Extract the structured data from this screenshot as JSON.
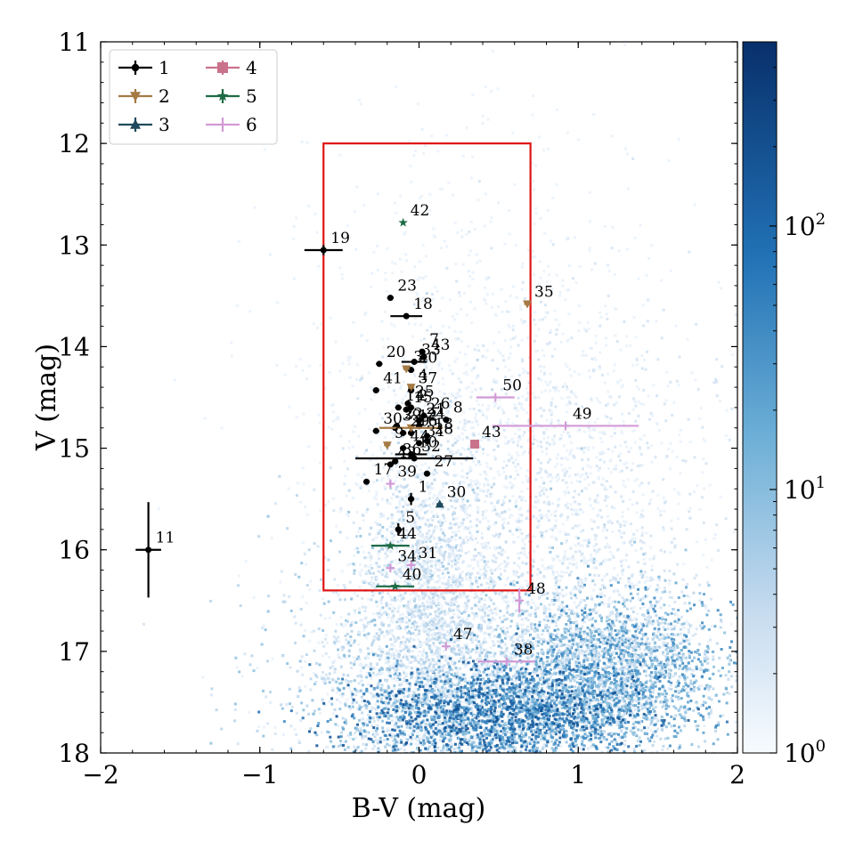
{
  "chart_data": {
    "type": "scatter",
    "xlabel": "B-V (mag)",
    "ylabel": "V (mag)",
    "xlim": [
      -2,
      2
    ],
    "ylim": [
      18,
      11
    ],
    "y_inverted": true,
    "x_ticks": [
      "−2",
      "−1",
      "0",
      "1",
      "2"
    ],
    "x_tick_values": [
      -2,
      -1,
      0,
      1,
      2
    ],
    "y_ticks": [
      "11",
      "12",
      "13",
      "14",
      "15",
      "16",
      "17",
      "18"
    ],
    "y_tick_values": [
      11,
      12,
      13,
      14,
      15,
      16,
      17,
      18
    ],
    "grid": false,
    "legend": {
      "placement": "top-left",
      "entries": [
        {
          "label": "1",
          "marker": "circle",
          "color": "#000000"
        },
        {
          "label": "2",
          "marker": "triangle-down",
          "color": "#a57a45"
        },
        {
          "label": "3",
          "marker": "triangle-up",
          "color": "#1f4a5e"
        },
        {
          "label": "4",
          "marker": "square",
          "color": "#c9728b"
        },
        {
          "label": "5",
          "marker": "star",
          "color": "#1e6b45"
        },
        {
          "label": "6",
          "marker": "plus",
          "color": "#d29ad6"
        }
      ]
    },
    "colorbar": {
      "scale": "log",
      "range": [
        1,
        500
      ],
      "colormap": "Blues",
      "ticks": [
        {
          "value": 1,
          "base": "10",
          "exp": "0"
        },
        {
          "value": 10,
          "base": "10",
          "exp": "1"
        },
        {
          "value": 100,
          "base": "10",
          "exp": "2"
        }
      ]
    },
    "selection_box": {
      "x": [
        -0.6,
        0.7
      ],
      "y": [
        12,
        16.4
      ],
      "color": "#e01414"
    },
    "background_density": "2D histogram of field stars: main sequence near B-V 0, red giant clump near B-V 1.2",
    "series": [
      {
        "name": "1",
        "marker": "circle",
        "color": "#000000",
        "points": [
          {
            "id": "1",
            "x": -0.05,
            "y": 15.5,
            "xerr": 0.02,
            "yerr": 0.06
          },
          {
            "id": "2",
            "x": -0.05,
            "y": 14.6,
            "xerr": 0.02,
            "yerr": 0.02
          },
          {
            "id": "5",
            "x": -0.13,
            "y": 15.8,
            "xerr": 0.02,
            "yerr": 0.06
          },
          {
            "id": "7",
            "x": 0.02,
            "y": 14.05,
            "xerr": 0.02,
            "yerr": 0.02
          },
          {
            "id": "8",
            "x": 0.17,
            "y": 14.72,
            "xerr": 0.02,
            "yerr": 0.02
          },
          {
            "id": "10",
            "x": -0.05,
            "y": 15.06,
            "xerr": 0.1,
            "yerr": 0.02
          },
          {
            "id": "11",
            "x": -1.7,
            "y": 16.0,
            "xerr": 0.08,
            "yerr": 0.47
          },
          {
            "id": "13",
            "x": 0.05,
            "y": 14.88,
            "xerr": 0.02,
            "yerr": 0.02
          },
          {
            "id": "14",
            "x": -0.13,
            "y": 14.6,
            "xerr": 0.02,
            "yerr": 0.02
          },
          {
            "id": "15",
            "x": -0.08,
            "y": 14.62,
            "xerr": 0.02,
            "yerr": 0.02
          },
          {
            "id": "16",
            "x": -0.05,
            "y": 14.85,
            "xerr": 0.02,
            "yerr": 0.02
          },
          {
            "id": "17",
            "x": -0.33,
            "y": 15.33,
            "xerr": 0.02,
            "yerr": 0.02
          },
          {
            "id": "18",
            "x": -0.08,
            "y": 13.7,
            "xerr": 0.1,
            "yerr": 0.02
          },
          {
            "id": "19",
            "x": -0.6,
            "y": 13.05,
            "xerr": 0.12,
            "yerr": 0.05
          },
          {
            "id": "20",
            "x": -0.25,
            "y": 14.17,
            "xerr": 0.02,
            "yerr": 0.02
          },
          {
            "id": "21",
            "x": 0.0,
            "y": 14.73,
            "xerr": 0.02,
            "yerr": 0.02
          },
          {
            "id": "22",
            "x": -0.14,
            "y": 14.78,
            "xerr": 0.02,
            "yerr": 0.02
          },
          {
            "id": "23",
            "x": -0.18,
            "y": 13.52,
            "xerr": 0.02,
            "yerr": 0.02
          },
          {
            "id": "24",
            "x": 0.0,
            "y": 14.78,
            "xerr": 0.02,
            "yerr": 0.02
          },
          {
            "id": "25",
            "x": -0.07,
            "y": 14.56,
            "xerr": 0.02,
            "yerr": 0.02
          },
          {
            "id": "26",
            "x": 0.03,
            "y": 14.68,
            "xerr": 0.02,
            "yerr": 0.02
          },
          {
            "id": "27",
            "x": 0.05,
            "y": 15.25,
            "xerr": 0.02,
            "yerr": 0.02
          },
          {
            "id": "28",
            "x": 0.05,
            "y": 14.93,
            "xerr": 0.02,
            "yerr": 0.02
          },
          {
            "id": "29",
            "x": -0.1,
            "y": 14.85,
            "xerr": 0.02,
            "yerr": 0.02
          },
          {
            "id": "30",
            "x": -0.27,
            "y": 14.83,
            "xerr": 0.02,
            "yerr": 0.02
          },
          {
            "id": "31",
            "x": 0.0,
            "y": 14.95,
            "xerr": 0.02,
            "yerr": 0.02
          },
          {
            "id": "32",
            "x": -0.03,
            "y": 15.1,
            "xerr": 0.37,
            "yerr": 0.02
          },
          {
            "id": "33",
            "x": -0.03,
            "y": 14.15,
            "xerr": 0.08,
            "yerr": 0.02
          },
          {
            "id": "36",
            "x": -0.15,
            "y": 15.13,
            "xerr": 0.02,
            "yerr": 0.02
          },
          {
            "id": "37",
            "x": -0.05,
            "y": 14.43,
            "xerr": 0.02,
            "yerr": 0.02
          },
          {
            "id": "39",
            "x": -0.15,
            "y": 14.8,
            "xerr": 0.02,
            "yerr": 0.02
          },
          {
            "id": "40",
            "x": -0.05,
            "y": 14.23,
            "xerr": 0.02,
            "yerr": 0.02
          },
          {
            "id": "41",
            "x": -0.27,
            "y": 14.43,
            "xerr": 0.02,
            "yerr": 0.02
          },
          {
            "id": "42",
            "x": -0.18,
            "y": 15.16,
            "xerr": 0.02,
            "yerr": 0.02
          },
          {
            "id": "43",
            "x": 0.03,
            "y": 14.1,
            "xerr": 0.02,
            "yerr": 0.02
          },
          {
            "id": "44",
            "x": -0.1,
            "y": 15.0,
            "xerr": 0.02,
            "yerr": 0.02
          }
        ]
      },
      {
        "name": "2",
        "marker": "triangle-down",
        "color": "#a57a45",
        "points": [
          {
            "id": "3",
            "x": -0.08,
            "y": 14.22,
            "xerr": 0.02,
            "yerr": 0.02
          },
          {
            "id": "4",
            "x": -0.05,
            "y": 14.4,
            "xerr": 0.02,
            "yerr": 0.02
          },
          {
            "id": "9",
            "x": -0.2,
            "y": 14.97,
            "xerr": 0.02,
            "yerr": 0.02
          },
          {
            "id": "12",
            "x": -0.05,
            "y": 14.8,
            "xerr": 0.2,
            "yerr": 0.02
          },
          {
            "id": "35",
            "x": 0.68,
            "y": 13.58,
            "xerr": 0.02,
            "yerr": 0.02
          }
        ]
      },
      {
        "name": "3",
        "marker": "triangle-up",
        "color": "#1f4a5e",
        "points": [
          {
            "id": "30",
            "x": 0.13,
            "y": 15.55,
            "xerr": 0.02,
            "yerr": 0.02
          }
        ]
      },
      {
        "name": "4",
        "marker": "square",
        "color": "#c9728b",
        "points": [
          {
            "id": "43",
            "x": 0.35,
            "y": 14.96,
            "xerr": 0.02,
            "yerr": 0.02
          }
        ]
      },
      {
        "name": "5",
        "marker": "star",
        "color": "#1e6b45",
        "points": [
          {
            "id": "42",
            "x": -0.1,
            "y": 12.78,
            "xerr": 0.0,
            "yerr": 0.0
          },
          {
            "id": "44",
            "x": -0.18,
            "y": 15.96,
            "xerr": 0.12,
            "yerr": 0.02
          },
          {
            "id": "40",
            "x": -0.15,
            "y": 16.36,
            "xerr": 0.12,
            "yerr": 0.02
          }
        ]
      },
      {
        "name": "6",
        "marker": "plus",
        "color": "#d29ad6",
        "points": [
          {
            "id": "49",
            "x": 0.92,
            "y": 14.78,
            "xerr": 0.46,
            "yerr": 0.02
          },
          {
            "id": "50",
            "x": 0.48,
            "y": 14.5,
            "xerr": 0.12,
            "yerr": 0.02
          },
          {
            "id": "48",
            "x": 0.63,
            "y": 16.5,
            "xerr": 0.02,
            "yerr": 0.12
          },
          {
            "id": "47",
            "x": 0.17,
            "y": 16.95,
            "xerr": 0.02,
            "yerr": 0.02
          },
          {
            "id": "38",
            "x": 0.55,
            "y": 17.1,
            "xerr": 0.18,
            "yerr": 0.02
          },
          {
            "id": "39",
            "x": -0.18,
            "y": 15.35,
            "xerr": 0.02,
            "yerr": 0.03
          },
          {
            "id": "34",
            "x": -0.18,
            "y": 16.18,
            "xerr": 0.02,
            "yerr": 0.02
          },
          {
            "id": "31",
            "x": -0.05,
            "y": 16.15,
            "xerr": 0.02,
            "yerr": 0.02
          }
        ]
      }
    ]
  }
}
